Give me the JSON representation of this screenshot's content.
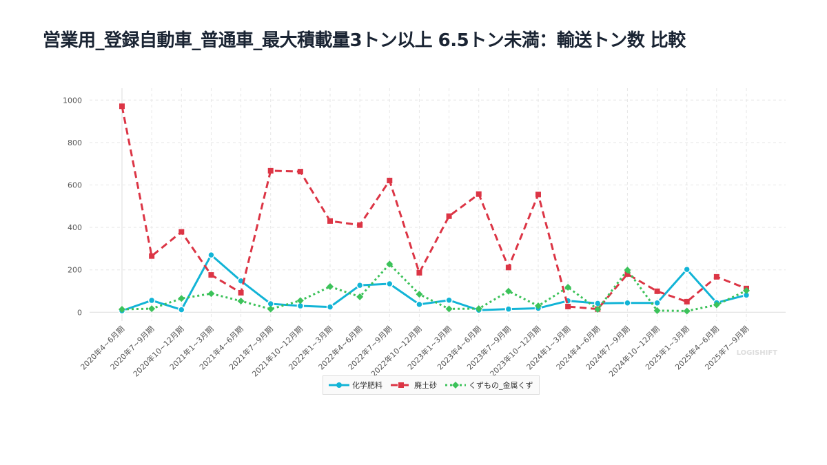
{
  "title": "営業用_登録自動車_普通車_最大積載量3トン以上 6.5トン未満：輸送トン数 比較",
  "watermark": "LOGISHIFT",
  "chart_data": {
    "type": "line",
    "title": "営業用_登録自動車_普通車_最大積載量3トン以上 6.5トン未満：輸送トン数 比較",
    "xlabel": "",
    "ylabel": "",
    "ylim": [
      -50,
      1000
    ],
    "yticks": [
      0,
      200,
      400,
      600,
      800,
      1000
    ],
    "grid": true,
    "legend": "bottom",
    "categories": [
      "2020年4~6月期",
      "2020年7~9月期",
      "2020年10~12月期",
      "2021年1~3月期",
      "2021年4~6月期",
      "2021年7~9月期",
      "2021年10~12月期",
      "2022年1~3月期",
      "2022年4~6月期",
      "2022年7~9月期",
      "2022年10~12月期",
      "2023年1~3月期",
      "2023年4~6月期",
      "2023年7~9月期",
      "2023年10~12月期",
      "2024年1~3月期",
      "2024年4~6月期",
      "2024年7~9月期",
      "2024年10~12月期",
      "2025年1~3月期",
      "2025年4~6月期",
      "2025年7~9月期"
    ],
    "series": [
      {
        "name": "化学肥料",
        "color": "#12b4d6",
        "style": "solid",
        "marker": "circle",
        "values": [
          7,
          56,
          12,
          270,
          148,
          40,
          30,
          25,
          127,
          134,
          37,
          57,
          10,
          15,
          19,
          54,
          42,
          44,
          44,
          202,
          45,
          81
        ]
      },
      {
        "name": "廃土砂",
        "color": "#dc3545",
        "style": "dashed",
        "marker": "square",
        "values": [
          971,
          265,
          379,
          176,
          92,
          667,
          663,
          430,
          411,
          621,
          186,
          453,
          557,
          211,
          555,
          27,
          15,
          180,
          99,
          50,
          167,
          112
        ]
      },
      {
        "name": "くずもの_金属くず",
        "color": "#3cc25a",
        "style": "dotted",
        "marker": "diamond",
        "values": [
          14,
          17,
          65,
          88,
          53,
          15,
          55,
          121,
          73,
          227,
          85,
          16,
          17,
          99,
          30,
          118,
          14,
          199,
          8,
          6,
          35,
          102
        ]
      }
    ]
  }
}
